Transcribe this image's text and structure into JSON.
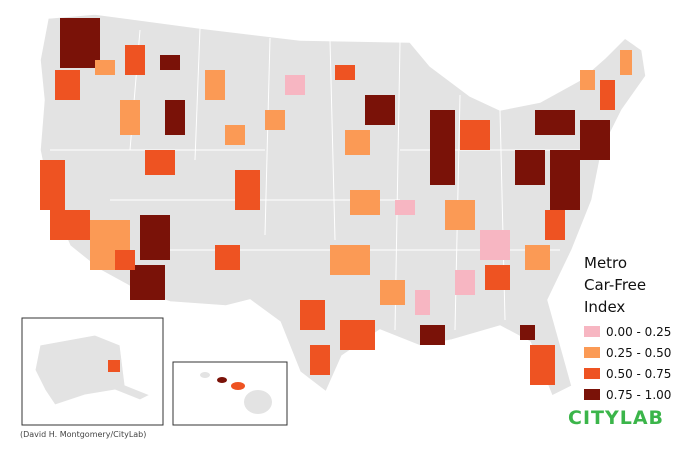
{
  "legend": {
    "title": [
      "Metro",
      "Car-Free",
      "Index"
    ],
    "items": [
      {
        "label": "0.00 - 0.25",
        "color": "#f7b6c2"
      },
      {
        "label": "0.25 - 0.50",
        "color": "#fb9a55"
      },
      {
        "label": "0.50 - 0.75",
        "color": "#ee5322"
      },
      {
        "label": "0.75 - 1.00",
        "color": "#7a1208"
      }
    ]
  },
  "credit": "(David H. Montgomery/CityLab)",
  "logo": "CITYLAB"
}
